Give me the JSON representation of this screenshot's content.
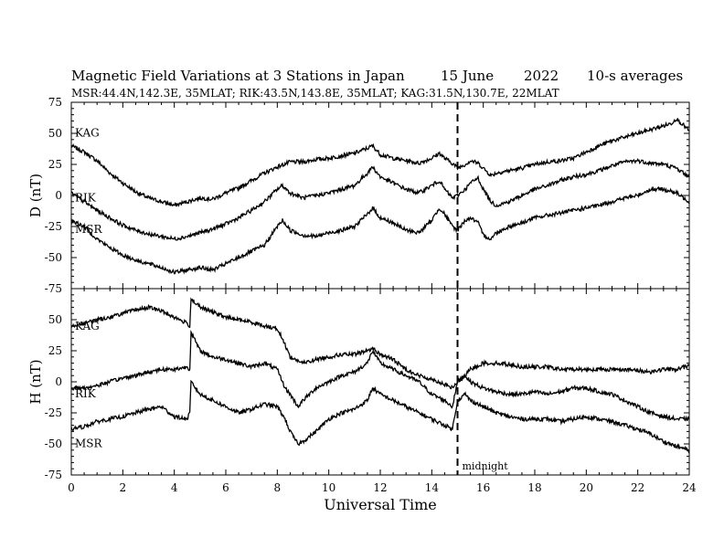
{
  "header": {
    "title": "Magnetic Field Variations at 3 Stations in Japan",
    "date": "15 June",
    "year": "2022",
    "averaging": "10-s averages",
    "stations_line": "MSR:44.4N,142.3E, 35MLAT;  RIK:43.5N,143.8E, 35MLAT;  KAG:31.5N,130.7E, 22MLAT"
  },
  "chart_data": [
    {
      "type": "line",
      "panel": "top",
      "ylabel": "D (nT)",
      "ylim": [
        -75,
        75
      ],
      "yticks": [
        "75",
        "50",
        "25",
        "0",
        "-25",
        "-50",
        "-75"
      ],
      "xlim": [
        0,
        24
      ],
      "series": [
        {
          "name": "KAG",
          "x": [
            0,
            0.5,
            1,
            1.5,
            2,
            2.5,
            3,
            3.5,
            4,
            4.5,
            5,
            5.5,
            6,
            6.5,
            7,
            7.5,
            8,
            8.5,
            9,
            9.5,
            10,
            10.5,
            11,
            11.5,
            11.7,
            12,
            12.5,
            13,
            13.5,
            14,
            14.3,
            14.5,
            14.8,
            15,
            15.3,
            15.5,
            15.8,
            16,
            16.3,
            16.5,
            17,
            17.5,
            18,
            18.5,
            19,
            19.5,
            20,
            20.5,
            21,
            21.5,
            22,
            22.5,
            23,
            23.3,
            23.5,
            24
          ],
          "values": [
            40,
            35,
            28,
            18,
            10,
            3,
            -2,
            -5,
            -8,
            -5,
            -2,
            -3,
            2,
            6,
            12,
            18,
            23,
            27,
            27,
            29,
            30,
            32,
            34,
            38,
            40,
            33,
            30,
            28,
            26,
            30,
            34,
            30,
            26,
            22,
            25,
            28,
            26,
            22,
            16,
            18,
            20,
            22,
            25,
            27,
            28,
            30,
            35,
            40,
            44,
            47,
            50,
            53,
            56,
            58,
            62,
            52
          ]
        },
        {
          "name": "RIK",
          "x": [
            0,
            0.5,
            1,
            1.5,
            2,
            2.5,
            3,
            3.5,
            4,
            4.5,
            5,
            5.5,
            6,
            6.5,
            7,
            7.5,
            8,
            8.2,
            8.5,
            9,
            9.5,
            10,
            10.5,
            11,
            11.5,
            11.7,
            12,
            12.5,
            13,
            13.5,
            14,
            14.3,
            14.5,
            14.8,
            15,
            15.3,
            15.5,
            15.8,
            16,
            16.3,
            16.5,
            17,
            17.5,
            18,
            18.5,
            19,
            19.5,
            20,
            20.5,
            21,
            21.5,
            22,
            22.5,
            23,
            23.5,
            24
          ],
          "values": [
            2,
            -5,
            -12,
            -18,
            -24,
            -28,
            -31,
            -33,
            -35,
            -33,
            -30,
            -27,
            -23,
            -18,
            -12,
            -5,
            5,
            8,
            2,
            -2,
            0,
            2,
            5,
            8,
            18,
            23,
            15,
            10,
            5,
            2,
            8,
            12,
            5,
            -2,
            0,
            5,
            10,
            14,
            5,
            -5,
            -8,
            -5,
            0,
            5,
            8,
            12,
            15,
            17,
            20,
            24,
            27,
            28,
            26,
            25,
            22,
            15
          ]
        },
        {
          "name": "MSR",
          "x": [
            0,
            0.5,
            1,
            1.5,
            2,
            2.5,
            3,
            3.5,
            4,
            4.5,
            5,
            5.5,
            6,
            6.5,
            7,
            7.5,
            8,
            8.2,
            8.5,
            9,
            9.5,
            10,
            10.5,
            11,
            11.5,
            11.7,
            12,
            12.5,
            13,
            13.5,
            14,
            14.3,
            14.5,
            14.8,
            15,
            15.3,
            15.5,
            15.8,
            16,
            16.3,
            16.5,
            17,
            17.5,
            18,
            18.5,
            19,
            19.5,
            20,
            20.5,
            21,
            21.5,
            22,
            22.5,
            23,
            23.5,
            24
          ],
          "values": [
            -20,
            -25,
            -35,
            -42,
            -48,
            -52,
            -55,
            -58,
            -62,
            -60,
            -58,
            -60,
            -55,
            -50,
            -45,
            -40,
            -25,
            -20,
            -28,
            -32,
            -33,
            -30,
            -28,
            -25,
            -15,
            -10,
            -18,
            -22,
            -28,
            -30,
            -20,
            -10,
            -15,
            -25,
            -28,
            -20,
            -18,
            -22,
            -32,
            -35,
            -30,
            -25,
            -22,
            -18,
            -16,
            -14,
            -12,
            -10,
            -8,
            -5,
            -2,
            0,
            5,
            5,
            2,
            -5
          ]
        }
      ],
      "annotations": []
    },
    {
      "type": "line",
      "panel": "bottom",
      "ylabel": "H (nT)",
      "ylim": [
        -75,
        75
      ],
      "yticks": [
        "75",
        "50",
        "25",
        "0",
        "-25",
        "-50",
        "-75"
      ],
      "xlabel": "Universal Time",
      "xlim": [
        0,
        24
      ],
      "xticks": [
        "0",
        "2",
        "4",
        "6",
        "8",
        "10",
        "12",
        "14",
        "16",
        "18",
        "20",
        "22",
        "24"
      ],
      "series": [
        {
          "name": "KAG",
          "x": [
            0,
            0.5,
            1,
            1.5,
            2,
            2.5,
            3,
            3.5,
            4,
            4.5,
            4.6,
            4.65,
            5,
            5.5,
            6,
            6.5,
            7,
            7.5,
            8,
            8.3,
            8.5,
            9,
            9.5,
            10,
            10.5,
            11,
            11.5,
            11.7,
            12,
            12.5,
            13,
            13.5,
            14,
            14.5,
            14.8,
            15,
            15.3,
            15.5,
            16,
            16.5,
            17,
            17.5,
            18,
            18.5,
            19,
            19.5,
            20,
            20.5,
            21,
            21.5,
            22,
            22.5,
            23,
            23.5,
            24
          ],
          "values": [
            45,
            47,
            50,
            52,
            55,
            58,
            60,
            57,
            52,
            47,
            45,
            67,
            60,
            56,
            52,
            50,
            48,
            45,
            43,
            30,
            20,
            15,
            18,
            20,
            22,
            22,
            25,
            27,
            22,
            18,
            10,
            5,
            2,
            -2,
            -5,
            0,
            5,
            10,
            15,
            15,
            14,
            12,
            12,
            12,
            10,
            10,
            10,
            10,
            10,
            10,
            9,
            8,
            10,
            10,
            13
          ]
        },
        {
          "name": "RIK",
          "x": [
            0,
            0.5,
            1,
            1.5,
            2,
            2.5,
            3,
            3.5,
            4,
            4.5,
            4.6,
            4.65,
            5,
            5.5,
            6,
            6.5,
            7,
            7.5,
            8,
            8.3,
            8.5,
            8.8,
            9,
            9.5,
            10,
            10.5,
            11,
            11.5,
            11.7,
            12,
            12.5,
            13,
            13.5,
            14,
            14.5,
            14.8,
            15,
            15.3,
            15.5,
            16,
            16.5,
            17,
            17.5,
            18,
            18.5,
            19,
            19.5,
            20,
            20.5,
            21,
            21.5,
            22,
            22.5,
            23,
            23.5,
            24
          ],
          "values": [
            -5,
            -5,
            -3,
            0,
            3,
            5,
            8,
            10,
            10,
            12,
            10,
            40,
            25,
            20,
            18,
            15,
            12,
            15,
            10,
            -5,
            -10,
            -20,
            -15,
            -5,
            0,
            5,
            8,
            15,
            25,
            15,
            10,
            5,
            0,
            -10,
            -15,
            -20,
            0,
            5,
            0,
            -5,
            -8,
            -10,
            -10,
            -8,
            -10,
            -8,
            -5,
            -5,
            -8,
            -10,
            -15,
            -20,
            -25,
            -28,
            -30,
            -30
          ]
        },
        {
          "name": "MSR",
          "x": [
            0,
            0.5,
            1,
            1.5,
            2,
            2.5,
            3,
            3.5,
            4,
            4.5,
            4.6,
            4.65,
            5,
            5.5,
            6,
            6.5,
            7,
            7.5,
            8,
            8.3,
            8.5,
            8.8,
            9,
            9.5,
            10,
            10.5,
            11,
            11.5,
            11.7,
            12,
            12.5,
            13,
            13.5,
            14,
            14.5,
            14.8,
            15,
            15.3,
            15.5,
            16,
            16.5,
            17,
            17.5,
            18,
            18.5,
            19,
            19.5,
            20,
            20.5,
            21,
            21.5,
            22,
            22.5,
            23,
            23.5,
            24
          ],
          "values": [
            -38,
            -36,
            -32,
            -30,
            -28,
            -25,
            -22,
            -20,
            -28,
            -30,
            -25,
            0,
            -10,
            -15,
            -20,
            -25,
            -22,
            -18,
            -20,
            -30,
            -40,
            -50,
            -48,
            -40,
            -30,
            -25,
            -22,
            -15,
            -5,
            -10,
            -15,
            -20,
            -25,
            -30,
            -35,
            -38,
            -15,
            -10,
            -15,
            -20,
            -25,
            -28,
            -30,
            -30,
            -30,
            -32,
            -30,
            -28,
            -30,
            -32,
            -35,
            -38,
            -42,
            -48,
            -52,
            -55
          ]
        }
      ],
      "annotations": [
        "midnight"
      ]
    }
  ],
  "marker": {
    "x": 15,
    "label": "midnight"
  }
}
